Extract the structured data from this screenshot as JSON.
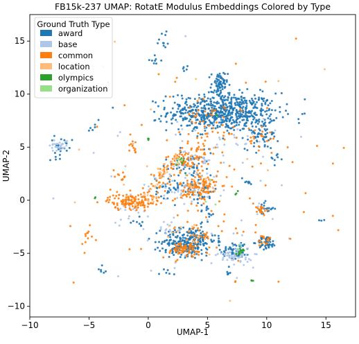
{
  "chart_data": {
    "type": "scatter",
    "title": "FB15k-237 UMAP: RotatE Modulus Embeddings Colored by Type",
    "xlabel": "UMAP-1",
    "ylabel": "UMAP-2",
    "xlim": [
      -10,
      17.5
    ],
    "ylim": [
      -11,
      17.5
    ],
    "xticks": [
      -10,
      -5,
      0,
      5,
      10,
      15
    ],
    "yticks": [
      -10,
      -5,
      0,
      5,
      10,
      15
    ],
    "tick_labels_x": [
      "−10",
      "−5",
      "0",
      "5",
      "10",
      "15"
    ],
    "tick_labels_y": [
      "−10",
      "−5",
      "0",
      "5",
      "10",
      "15"
    ],
    "grid": false,
    "legend": {
      "title": "Ground Truth Type",
      "placement": "top-left",
      "entries": [
        "award",
        "base",
        "common",
        "location",
        "olympics",
        "organization"
      ]
    },
    "series": [
      {
        "name": "award",
        "color": "#1f77b4",
        "clusters": [
          {
            "cx": 6.3,
            "cy": 8.3,
            "sx": 2.3,
            "sy": 0.9,
            "n": 650
          },
          {
            "cx": 6.0,
            "cy": 10.8,
            "sx": 0.35,
            "sy": 0.7,
            "n": 70
          },
          {
            "cx": 9.6,
            "cy": 6.2,
            "sx": 0.7,
            "sy": 0.7,
            "n": 60
          },
          {
            "cx": 3.5,
            "cy": -3.8,
            "sx": 1.1,
            "sy": 0.7,
            "n": 200
          },
          {
            "cx": 2.8,
            "cy": -4.5,
            "sx": 0.8,
            "sy": 0.5,
            "n": 80
          },
          {
            "cx": 10.0,
            "cy": -4.0,
            "sx": 0.4,
            "sy": 0.3,
            "n": 50
          },
          {
            "cx": 7.4,
            "cy": -4.7,
            "sx": 0.6,
            "sy": 0.4,
            "n": 60
          },
          {
            "cx": 3.3,
            "cy": 3.2,
            "sx": 1.0,
            "sy": 0.8,
            "n": 60
          },
          {
            "cx": 1.8,
            "cy": 1.2,
            "sx": 0.6,
            "sy": 0.5,
            "n": 30
          },
          {
            "cx": 4.5,
            "cy": 0.8,
            "sx": 0.7,
            "sy": 0.6,
            "n": 40
          },
          {
            "cx": -7.4,
            "cy": 5.0,
            "sx": 0.5,
            "sy": 0.5,
            "n": 25
          },
          {
            "cx": 9.8,
            "cy": -0.8,
            "sx": 0.4,
            "sy": 0.3,
            "n": 20
          },
          {
            "cx": -3.8,
            "cy": -6.7,
            "sx": 0.3,
            "sy": 0.3,
            "n": 6
          },
          {
            "cx": 1.5,
            "cy": -6.6,
            "sx": 0.3,
            "sy": 0.3,
            "n": 6
          },
          {
            "cx": -4.7,
            "cy": 7.0,
            "sx": 0.3,
            "sy": 0.4,
            "n": 6
          },
          {
            "cx": 0.5,
            "cy": 13.2,
            "sx": 0.3,
            "sy": 0.2,
            "n": 8
          },
          {
            "cx": 3.1,
            "cy": 12.3,
            "sx": 0.2,
            "sy": 0.2,
            "n": 5
          },
          {
            "cx": -0.8,
            "cy": -2.3,
            "sx": 0.3,
            "sy": 0.3,
            "n": 8
          },
          {
            "cx": 5.0,
            "cy": -1.2,
            "sx": 0.4,
            "sy": 0.4,
            "n": 10
          },
          {
            "cx": 6.7,
            "cy": -6.6,
            "sx": 0.2,
            "sy": 0.2,
            "n": 6
          },
          {
            "cx": 10.8,
            "cy": 4.0,
            "sx": 0.3,
            "sy": 0.3,
            "n": 8
          },
          {
            "cx": 8.3,
            "cy": 1.6,
            "sx": 0.3,
            "sy": 0.3,
            "n": 8
          },
          {
            "cx": 14.5,
            "cy": -2.0,
            "sx": 0.2,
            "sy": 0.2,
            "n": 3
          },
          {
            "cx": 1.3,
            "cy": 15.0,
            "sx": 0.3,
            "sy": 0.5,
            "n": 10
          }
        ]
      },
      {
        "name": "base",
        "color": "#aec7e8",
        "clusters": [
          {
            "cx": -7.5,
            "cy": 5.2,
            "sx": 0.4,
            "sy": 0.3,
            "n": 30
          },
          {
            "cx": 7.4,
            "cy": -5.2,
            "sx": 0.7,
            "sy": 0.4,
            "n": 60
          },
          {
            "cx": 3.5,
            "cy": 1.0,
            "sx": 1.0,
            "sy": 0.6,
            "n": 40
          },
          {
            "cx": 4.0,
            "cy": 3.5,
            "sx": 1.2,
            "sy": 0.7,
            "n": 30
          },
          {
            "cx": -1.5,
            "cy": -0.8,
            "sx": 0.8,
            "sy": 0.6,
            "n": 20
          },
          {
            "cx": 0.5,
            "cy": 1.0,
            "sx": 0.8,
            "sy": 0.8,
            "n": 15
          },
          {
            "cx": 2.0,
            "cy": -2.6,
            "sx": 0.5,
            "sy": 0.4,
            "n": 12
          },
          {
            "cx": 6.5,
            "cy": 6.0,
            "sx": 2.5,
            "sy": 1.0,
            "n": 30
          },
          {
            "cx": 5.5,
            "cy": -1.5,
            "sx": 3.0,
            "sy": 3.0,
            "n": 25
          },
          {
            "cx": 0.0,
            "cy": 3.5,
            "sx": 5.0,
            "sy": 5.0,
            "n": 20
          }
        ]
      },
      {
        "name": "common",
        "color": "#ff7f0e",
        "clusters": [
          {
            "cx": -1.6,
            "cy": -0.1,
            "sx": 0.9,
            "sy": 0.35,
            "n": 110
          },
          {
            "cx": 4.3,
            "cy": 1.1,
            "sx": 0.8,
            "sy": 0.8,
            "n": 110
          },
          {
            "cx": 3.2,
            "cy": 3.8,
            "sx": 0.8,
            "sy": 0.5,
            "n": 60
          },
          {
            "cx": 1.2,
            "cy": 2.2,
            "sx": 0.5,
            "sy": 0.6,
            "n": 30
          },
          {
            "cx": 0.2,
            "cy": 0.4,
            "sx": 0.5,
            "sy": 0.4,
            "n": 25
          },
          {
            "cx": 3.0,
            "cy": -4.7,
            "sx": 1.0,
            "sy": 0.4,
            "n": 70
          },
          {
            "cx": 4.3,
            "cy": -3.3,
            "sx": 0.5,
            "sy": 0.4,
            "n": 25
          },
          {
            "cx": 5.3,
            "cy": 7.8,
            "sx": 1.0,
            "sy": 0.8,
            "n": 35
          },
          {
            "cx": 4.5,
            "cy": 5.2,
            "sx": 0.7,
            "sy": 0.7,
            "n": 25
          },
          {
            "cx": 9.5,
            "cy": -0.8,
            "sx": 0.3,
            "sy": 0.3,
            "n": 15
          },
          {
            "cx": 9.5,
            "cy": 5.8,
            "sx": 0.5,
            "sy": 0.5,
            "n": 15
          },
          {
            "cx": -5.2,
            "cy": -3.5,
            "sx": 0.3,
            "sy": 0.3,
            "n": 10
          },
          {
            "cx": -2.2,
            "cy": 2.2,
            "sx": 0.4,
            "sy": 0.4,
            "n": 10
          },
          {
            "cx": -1.4,
            "cy": 5.1,
            "sx": 0.3,
            "sy": 0.3,
            "n": 10
          },
          {
            "cx": 10.0,
            "cy": -3.8,
            "sx": 0.4,
            "sy": 0.3,
            "n": 15
          },
          {
            "cx": 5.0,
            "cy": 2.0,
            "sx": 5.5,
            "sy": 6.0,
            "n": 110
          }
        ]
      },
      {
        "name": "location",
        "color": "#ffbb78",
        "clusters": [
          {
            "cx": 1.2,
            "cy": 2.4,
            "sx": 0.6,
            "sy": 0.5,
            "n": 15
          },
          {
            "cx": 0.3,
            "cy": 0.5,
            "sx": 0.5,
            "sy": 0.5,
            "n": 12
          },
          {
            "cx": 2.5,
            "cy": 4.0,
            "sx": 0.5,
            "sy": 0.4,
            "n": 10
          },
          {
            "cx": 3.0,
            "cy": -3.0,
            "sx": 0.7,
            "sy": 0.5,
            "n": 12
          },
          {
            "cx": 4.0,
            "cy": 1.5,
            "sx": 0.7,
            "sy": 0.6,
            "n": 10
          },
          {
            "cx": 5.0,
            "cy": 3.0,
            "sx": 5.0,
            "sy": 5.0,
            "n": 20
          }
        ]
      },
      {
        "name": "olympics",
        "color": "#2ca02c",
        "clusters": [
          {
            "cx": 7.8,
            "cy": -4.8,
            "sx": 0.12,
            "sy": 0.15,
            "n": 12
          },
          {
            "cx": 0.0,
            "cy": 5.8,
            "sx": 0.05,
            "sy": 0.08,
            "n": 4
          },
          {
            "cx": 8.7,
            "cy": -7.6,
            "sx": 0.05,
            "sy": 0.05,
            "n": 3
          },
          {
            "cx": 2.6,
            "cy": 3.6,
            "sx": 0.2,
            "sy": 0.2,
            "n": 5
          },
          {
            "cx": 7.5,
            "cy": 0.7,
            "sx": 0.1,
            "sy": 0.1,
            "n": 3
          },
          {
            "cx": 5.7,
            "cy": 8.0,
            "sx": 0.1,
            "sy": 0.1,
            "n": 2
          },
          {
            "cx": -4.5,
            "cy": 0.2,
            "sx": 0.05,
            "sy": 0.05,
            "n": 2
          }
        ]
      },
      {
        "name": "organization",
        "color": "#98df8a",
        "clusters": [
          {
            "cx": 2.6,
            "cy": 3.8,
            "sx": 0.15,
            "sy": 0.15,
            "n": 5
          },
          {
            "cx": 7.6,
            "cy": -4.5,
            "sx": 0.15,
            "sy": 0.15,
            "n": 4
          },
          {
            "cx": 5.0,
            "cy": 1.0,
            "sx": 1.5,
            "sy": 1.5,
            "n": 4
          }
        ]
      }
    ]
  }
}
